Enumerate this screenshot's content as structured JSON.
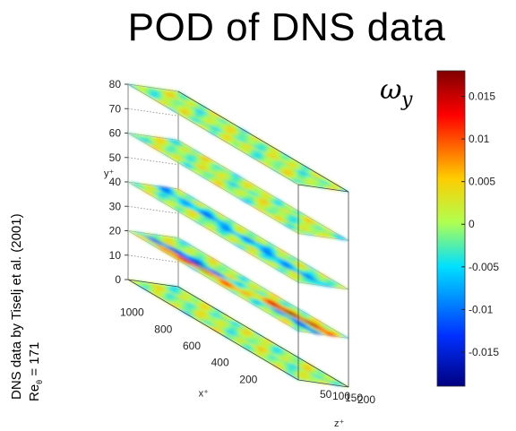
{
  "title": "POD of DNS data",
  "credit": "DNS data by Tiselj et al. (2001)",
  "reynolds": {
    "symbol": "Re",
    "subscript": "θ",
    "value": "= 171"
  },
  "colorbar": {
    "symbol": "ω",
    "subscript": "y",
    "ticks": [
      "0.015",
      "0.01",
      "0.005",
      "0",
      "-0.005",
      "-0.01",
      "-0.015"
    ],
    "colors": [
      "#800000",
      "#ff0000",
      "#ffff00",
      "#80ff80",
      "#00ffff",
      "#0000ff",
      "#000080"
    ]
  },
  "chart_data": {
    "type": "heatmap",
    "title": "POD of DNS data",
    "variable": "ω_y",
    "axes": {
      "y": {
        "label": "y⁺",
        "ticks": [
          0,
          10,
          20,
          30,
          40,
          50,
          60,
          70,
          80
        ]
      },
      "x": {
        "label": "x⁺",
        "ticks": [
          200,
          400,
          600,
          800,
          1000
        ]
      },
      "z": {
        "label": "z⁺",
        "ticks": [
          50,
          100,
          150,
          200
        ]
      }
    },
    "slices_y": [
      0,
      20,
      40,
      60,
      80
    ],
    "colorbar_range": [
      -0.019,
      0.018
    ],
    "colorbar_ticks": [
      -0.015,
      -0.01,
      -0.005,
      0,
      0.005,
      0.01,
      0.015
    ]
  }
}
